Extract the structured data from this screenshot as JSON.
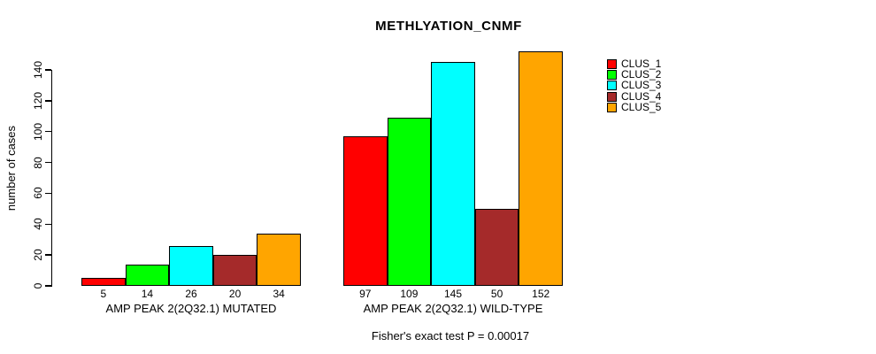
{
  "title": "METHLYATION_CNMF",
  "footer": "Fisher's exact test P = 0.00017",
  "chart_data": {
    "type": "bar",
    "title": "METHLYATION_CNMF",
    "xlabel": "",
    "ylabel": "number of cases",
    "categories": [
      "AMP PEAK 2(2Q32.1) MUTATED",
      "AMP PEAK 2(2Q32.1) WILD-TYPE"
    ],
    "series": [
      {
        "name": "CLUS_1",
        "color": "#FF0000",
        "values": [
          5,
          97
        ]
      },
      {
        "name": "CLUS_2",
        "color": "#00FF00",
        "values": [
          14,
          109
        ]
      },
      {
        "name": "CLUS_3",
        "color": "#00FFFF",
        "values": [
          26,
          145
        ]
      },
      {
        "name": "CLUS_4",
        "color": "#A52A2A",
        "values": [
          20,
          50
        ]
      },
      {
        "name": "CLUS_5",
        "color": "#FFA500",
        "values": [
          34,
          152
        ]
      }
    ],
    "bar_value_labels": [
      [
        5,
        14,
        26,
        20,
        34
      ],
      [
        97,
        109,
        145,
        50,
        152
      ]
    ],
    "yticks": [
      0,
      20,
      40,
      60,
      80,
      100,
      120,
      140
    ],
    "ylim": [
      0,
      152
    ],
    "grid": false,
    "legend_position": "right",
    "legend_labels": [
      "CLUS_1",
      "CLUS_2",
      "CLUS_3",
      "CLUS_4",
      "CLUS_5"
    ],
    "annotation": "Fisher's exact test P = 0.00017"
  }
}
